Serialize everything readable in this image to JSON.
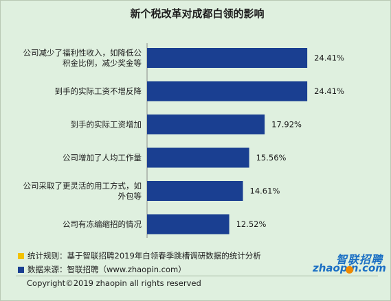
{
  "chart_data": {
    "type": "bar",
    "orientation": "horizontal",
    "title": "新个税改革对成都白领的影响",
    "categories": [
      "公司减少了福利性收入，如降低公积金比例，减少奖金等",
      "到手的实际工资不增反降",
      "到手的实际工资增加",
      "公司增加了人均工作量",
      "公司采取了更灵活的用工方式，如外包等",
      "公司有冻编缩招的情况"
    ],
    "category_lines": [
      [
        "公司减少了福利性收入，如降低公",
        "积金比例，减少奖金等"
      ],
      [
        "到手的实际工资不增反降"
      ],
      [
        "到手的实际工资增加"
      ],
      [
        "公司增加了人均工作量"
      ],
      [
        "公司采取了更灵活的用工方式，如",
        "外包等"
      ],
      [
        "公司有冻编缩招的情况"
      ]
    ],
    "values": [
      24.41,
      24.41,
      17.92,
      15.56,
      14.61,
      12.52
    ],
    "data_labels": [
      "24.41%",
      "24.41%",
      "17.92%",
      "15.56%",
      "14.61%",
      "12.52%"
    ],
    "unit": "%",
    "bar_color": "#1a3f91",
    "grid": false,
    "legend": "none"
  },
  "notes": {
    "rule": "统计规则：基于智联招聘2019年白领春季跳槽调研数据的统计分析",
    "source": "数据来源：智联招聘（www.zhaopin.com）",
    "rule_marker_color": "#f2c200",
    "source_marker_color": "#1a3f91"
  },
  "copyright": "Copyright©2019 zhaopin all rights reserved",
  "logo": {
    "cn": "智联招聘",
    "en": "zhaopin.com",
    "icon": "zhaopin-logo"
  },
  "colors": {
    "background": "#dff0df",
    "bar": "#1a3f91",
    "logo_blue": "#1a6fc4",
    "logo_orange": "#f08a00"
  }
}
